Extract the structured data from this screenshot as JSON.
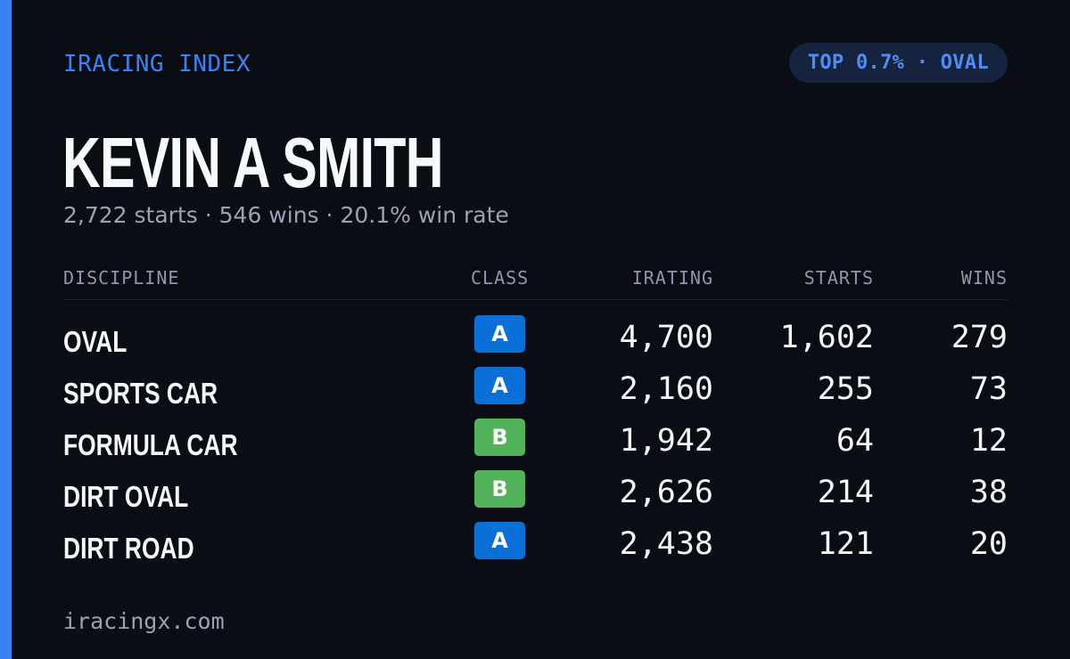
{
  "brand": "IRACING INDEX",
  "rank_badge": "TOP 0.7% · OVAL",
  "driver": {
    "name": "KEVIN A SMITH",
    "starts": "2,722 starts",
    "wins": "546 wins",
    "win_rate": "20.1% win rate",
    "separator": "·"
  },
  "table": {
    "headers": {
      "discipline": "DISCIPLINE",
      "class": "CLASS",
      "irating": "IRATING",
      "starts": "STARTS",
      "wins": "WINS"
    },
    "rows": [
      {
        "discipline": "OVAL",
        "class": "A",
        "irating": "4,700",
        "starts": "1,602",
        "wins": "279"
      },
      {
        "discipline": "SPORTS CAR",
        "class": "A",
        "irating": "2,160",
        "starts": "255",
        "wins": "73"
      },
      {
        "discipline": "FORMULA CAR",
        "class": "B",
        "irating": "1,942",
        "starts": "64",
        "wins": "12"
      },
      {
        "discipline": "DIRT OVAL",
        "class": "B",
        "irating": "2,626",
        "starts": "214",
        "wins": "38"
      },
      {
        "discipline": "DIRT ROAD",
        "class": "A",
        "irating": "2,438",
        "starts": "121",
        "wins": "20"
      }
    ]
  },
  "footer": "iracingx.com",
  "colors": {
    "accent": "#3b82f6",
    "background": "#0a0d14",
    "class_a": "#0a6fd6",
    "class_b": "#52b35a"
  }
}
